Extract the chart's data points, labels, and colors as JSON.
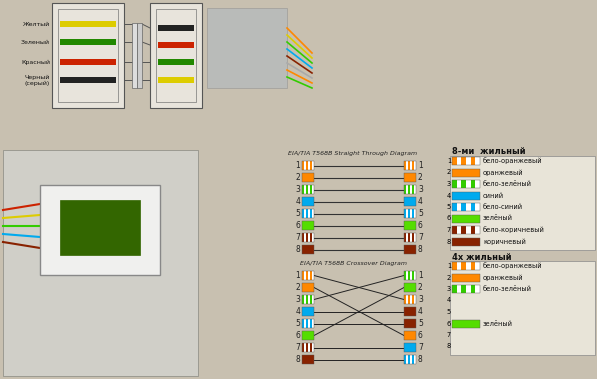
{
  "bg_color": "#c8c0b0",
  "title_straight": "EIA/TIA T568B Straight Through Diagram",
  "title_crossover": "EIA/TIA T568B Crossover Diagram",
  "legend8_title": "8-ми  жильный",
  "legend4_title": "4х жильный",
  "wire_colors_8_labels": [
    "бело-оранжевый",
    "оранжевый",
    "бело-зелёный",
    "синий",
    "бело-синий",
    "зелёный",
    "бело-коричневый",
    "коричневый"
  ],
  "wire_colors_4_labels": [
    "бело-оранжевый",
    "оранжевый",
    "бело-зелёный",
    "",
    "",
    "зелёный",
    "",
    ""
  ],
  "top_labels": [
    "Желтый",
    "Зеленый",
    "Красный",
    "Черный\n(серый)"
  ],
  "top_wire_colors": [
    "#ddcc00",
    "#228800",
    "#cc2200",
    "#222222"
  ],
  "crossover_map": [
    3,
    6,
    1,
    4,
    5,
    2,
    7,
    8
  ]
}
